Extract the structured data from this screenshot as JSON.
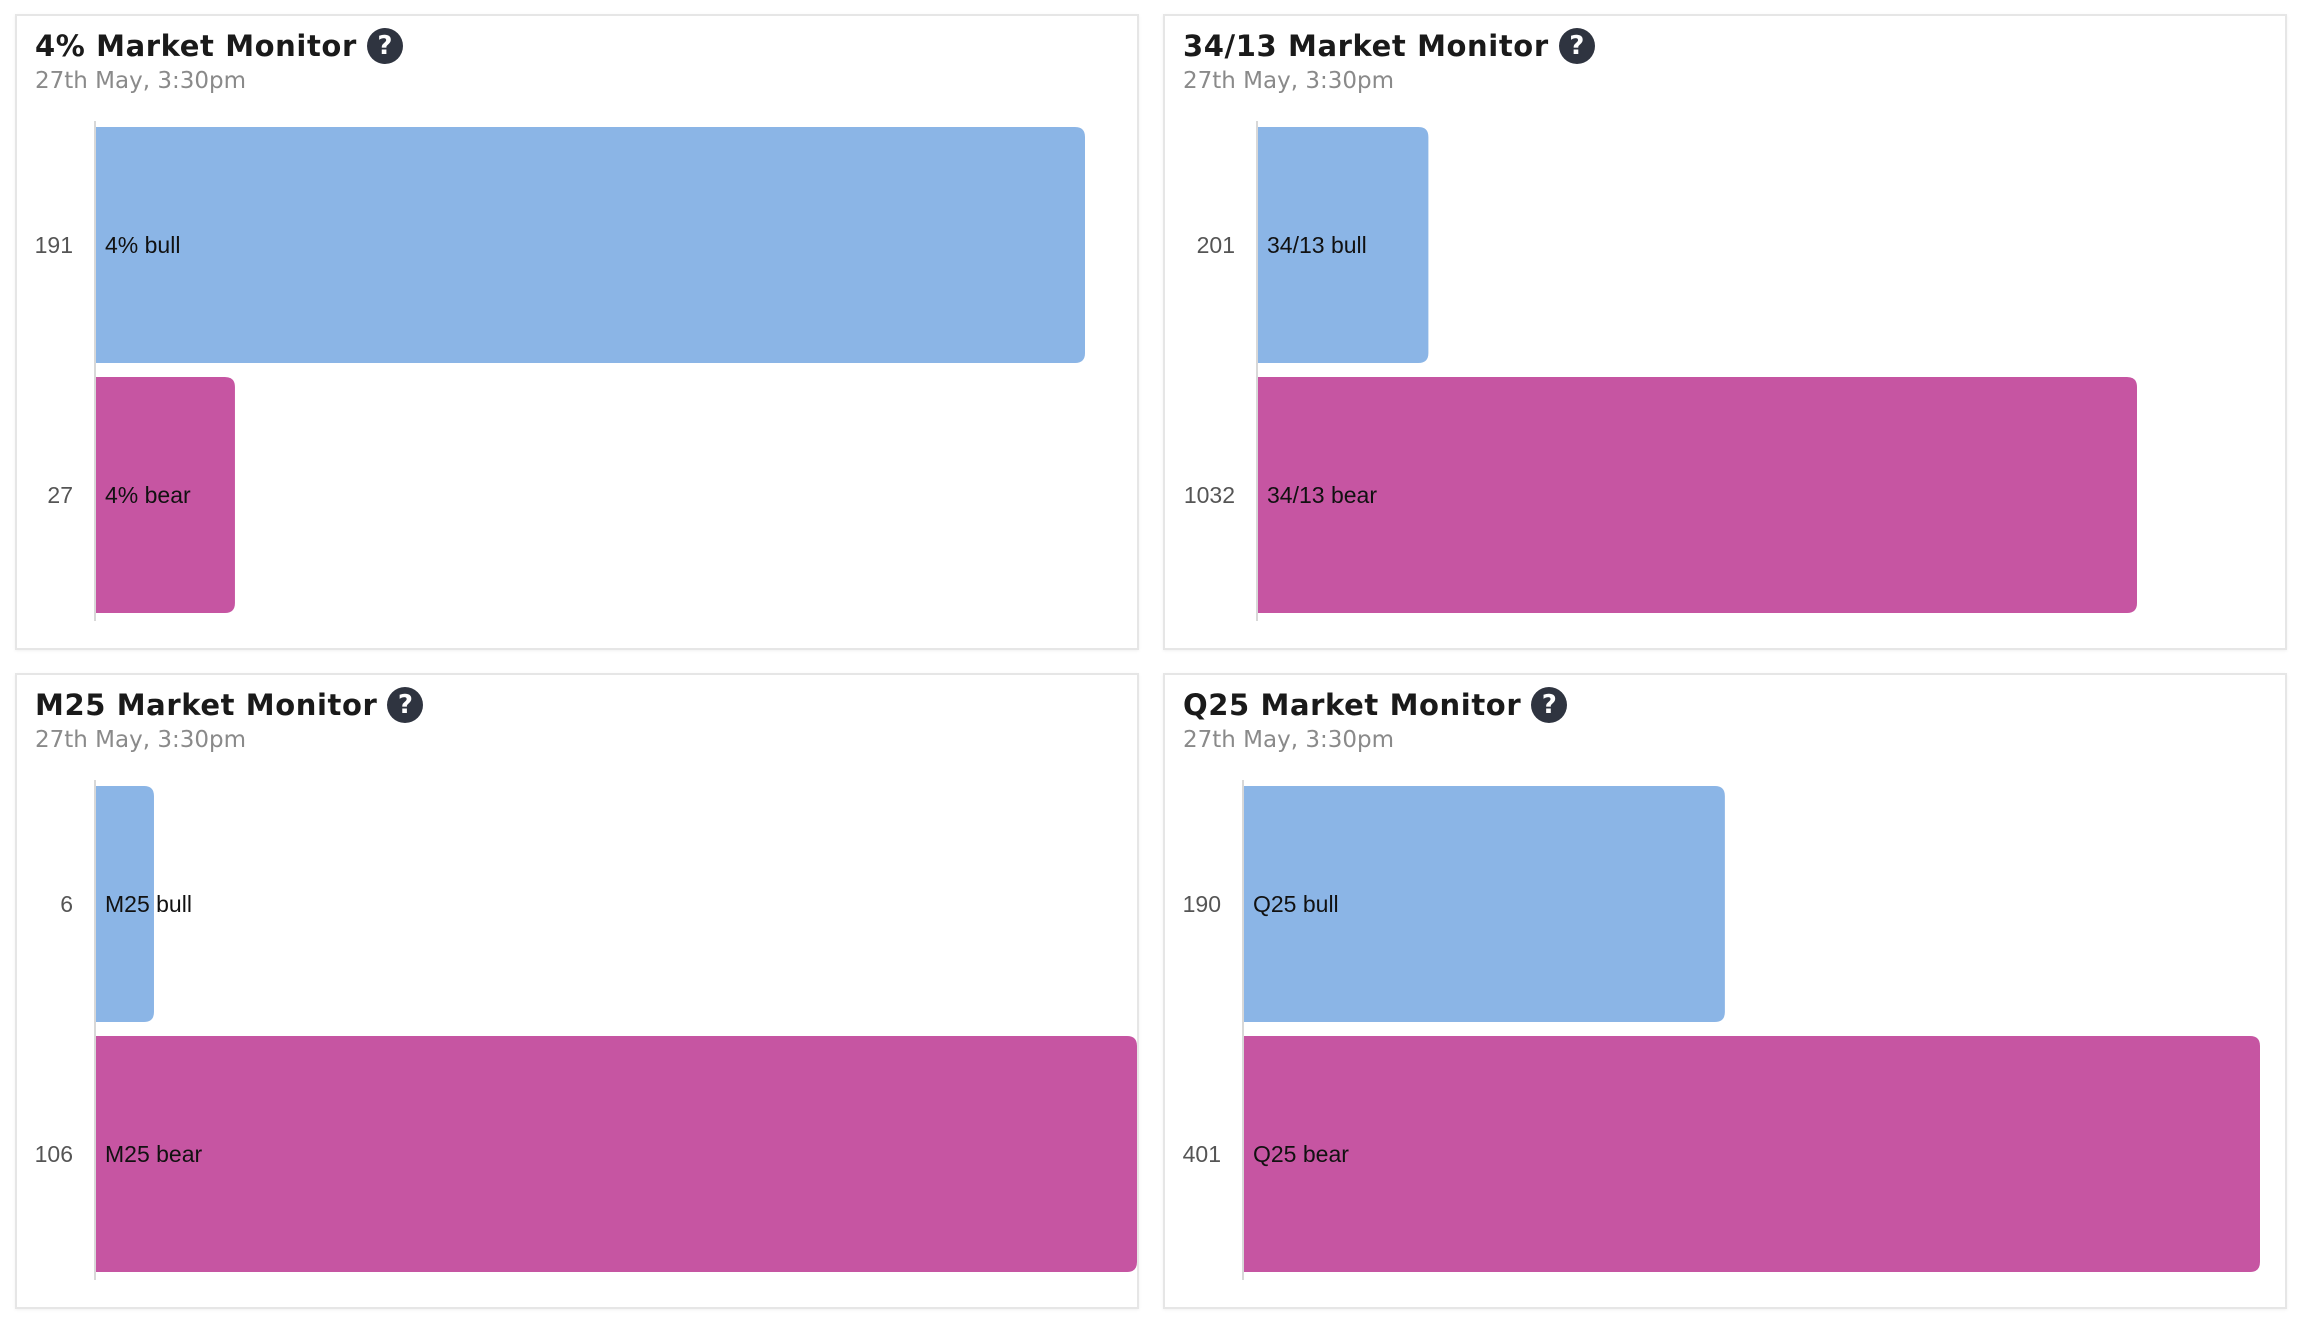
{
  "colors": {
    "bull": "#8bb5e6",
    "bear": "#c655a2",
    "axis": "#d8d8d8"
  },
  "help_icon": "question-circle-icon",
  "help_glyph": "?",
  "panels": [
    {
      "title": "4% Market Monitor",
      "timestamp": "27th May, 3:30pm",
      "chart_data": {
        "type": "bar",
        "orientation": "horizontal",
        "title": "4% Market Monitor",
        "categories": [
          "4% bull",
          "4% bear"
        ],
        "values": [
          191,
          27
        ]
      }
    },
    {
      "title": "34/13 Market Monitor",
      "timestamp": "27th May, 3:30pm",
      "chart_data": {
        "type": "bar",
        "orientation": "horizontal",
        "title": "34/13 Market Monitor",
        "categories": [
          "34/13 bull",
          "34/13 bear"
        ],
        "values": [
          201,
          1032
        ]
      }
    },
    {
      "title": "M25 Market Monitor",
      "timestamp": "27th May, 3:30pm",
      "chart_data": {
        "type": "bar",
        "orientation": "horizontal",
        "title": "M25 Market Monitor",
        "categories": [
          "M25 bull",
          "M25 bear"
        ],
        "values": [
          6,
          106
        ]
      }
    },
    {
      "title": "Q25 Market Monitor",
      "timestamp": "27th May, 3:30pm",
      "chart_data": {
        "type": "bar",
        "orientation": "horizontal",
        "title": "Q25 Market Monitor",
        "categories": [
          "Q25 bull",
          "Q25 bear"
        ],
        "values": [
          190,
          401
        ]
      }
    }
  ]
}
